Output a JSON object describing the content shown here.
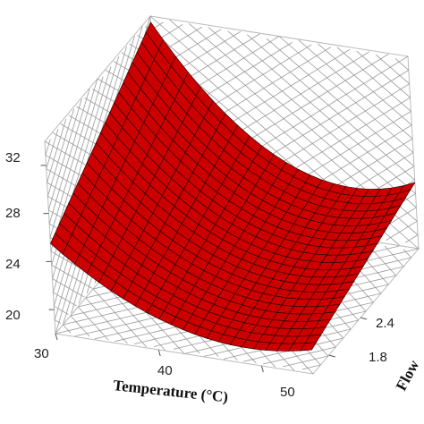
{
  "chart_data": {
    "type": "surface",
    "z_ticks": [
      "20",
      "24",
      "28",
      "32"
    ],
    "x_ticks": [
      "30",
      "40",
      "50"
    ],
    "y_ticks": [
      "1.8",
      "2.4"
    ],
    "xlabel": "Temperature (°C)",
    "ylabel": "Flow",
    "zlabel": "",
    "xlim": [
      30,
      55
    ],
    "ylim": [
      1.5,
      3.5
    ],
    "zlim": [
      18,
      34
    ],
    "grid": true,
    "surface_color": "#cc0000",
    "mesh_color": "#1a0000",
    "surface_corners": [
      {
        "temperature": 30,
        "flow": 1.5,
        "value": 25.5
      },
      {
        "temperature": 30,
        "flow": 3.5,
        "value": 33.5
      },
      {
        "temperature": 55,
        "flow": 1.5,
        "value": 20.0
      },
      {
        "temperature": 55,
        "flow": 3.5,
        "value": 23.5
      }
    ],
    "surface_sag": 5.0,
    "mesh_rows": 22,
    "mesh_cols": 22
  }
}
